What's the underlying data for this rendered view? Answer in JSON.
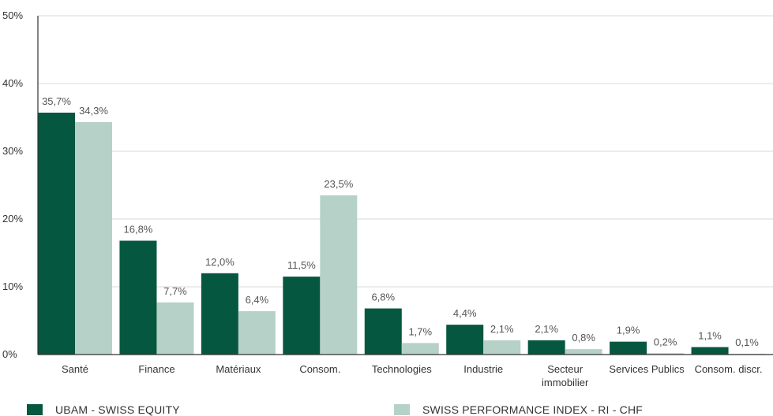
{
  "chart_data": {
    "type": "bar",
    "categories": [
      "Santé",
      "Finance",
      "Matériaux",
      "Consom.",
      "Technologies",
      "Industrie",
      "Secteur immobilier",
      "Services Publics",
      "Consom. discr."
    ],
    "category_lines": [
      [
        "Santé"
      ],
      [
        "Finance"
      ],
      [
        "Matériaux"
      ],
      [
        "Consom."
      ],
      [
        "Technologies"
      ],
      [
        "Industrie"
      ],
      [
        "Secteur",
        "immobilier"
      ],
      [
        "Services Publics"
      ],
      [
        "Consom. discr."
      ]
    ],
    "series": [
      {
        "name": "UBAM - SWISS EQUITY",
        "color": "#05573f",
        "values": [
          35.7,
          16.8,
          12.0,
          11.5,
          6.8,
          4.4,
          2.1,
          1.9,
          1.1
        ],
        "labels": [
          "35,7%",
          "16,8%",
          "12,0%",
          "11,5%",
          "6,8%",
          "4,4%",
          "2,1%",
          "1,9%",
          "1,1%"
        ]
      },
      {
        "name": "SWISS PERFORMANCE INDEX - RI - CHF",
        "color": "#b6d1c7",
        "values": [
          34.3,
          7.7,
          6.4,
          23.5,
          1.7,
          2.1,
          0.8,
          0.2,
          0.1
        ],
        "labels": [
          "34,3%",
          "7,7%",
          "6,4%",
          "23,5%",
          "1,7%",
          "2,1%",
          "0,8%",
          "0,2%",
          "0,1%"
        ]
      }
    ],
    "y_ticks": [
      0,
      10,
      20,
      30,
      40,
      50
    ],
    "y_tick_labels": [
      "0%",
      "10%",
      "20%",
      "30%",
      "40%",
      "50%"
    ],
    "ylim": [
      0,
      50
    ],
    "grid": true,
    "legend_position": "bottom"
  },
  "legend": {
    "series1_label": "UBAM - SWISS EQUITY",
    "series2_label": "SWISS PERFORMANCE INDEX - RI - CHF"
  }
}
